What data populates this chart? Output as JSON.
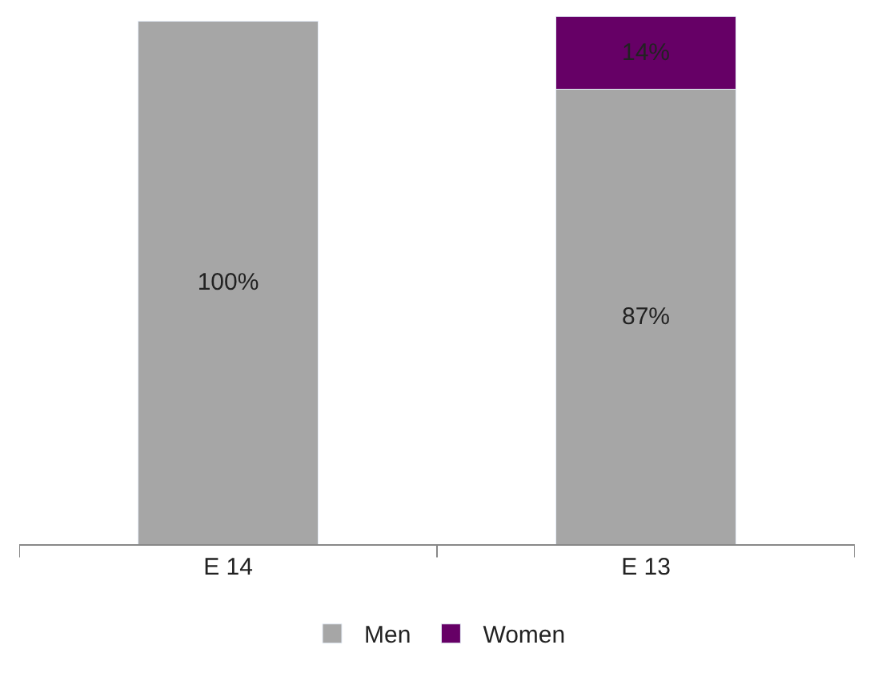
{
  "chart_data": {
    "type": "bar",
    "stacked": true,
    "categories": [
      "E 14",
      "E 13"
    ],
    "series": [
      {
        "name": "Men",
        "color": "#a6a6a6",
        "values": [
          100,
          87
        ],
        "value_labels": [
          "100%",
          "87%"
        ]
      },
      {
        "name": "Women",
        "color": "#660066",
        "values": [
          null,
          14
        ],
        "value_labels": [
          null,
          "14%"
        ]
      }
    ],
    "legend": "bottom"
  }
}
